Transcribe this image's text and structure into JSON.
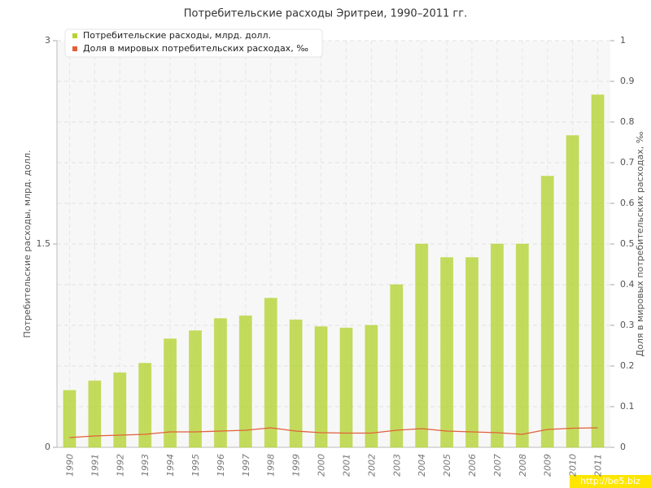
{
  "chart_data": {
    "type": "bar",
    "title": "Потребительские расходы Эритреи, 1990–2011 гг.",
    "y_label": "Потребительские расходы, млрд. долл.",
    "y2_label": "Доля в мировых потребительских расходах, ‰",
    "categories": [
      "1990",
      "1991",
      "1992",
      "1993",
      "1994",
      "1995",
      "1996",
      "1997",
      "1998",
      "1999",
      "2000",
      "2001",
      "2002",
      "2003",
      "2004",
      "2005",
      "2006",
      "2007",
      "2008",
      "2009",
      "2010",
      "2011"
    ],
    "series": [
      {
        "name": "Потребительские расходы, млрд. долл.",
        "type": "bar",
        "color": "#b5d334",
        "axis": "y",
        "values": [
          0.42,
          0.49,
          0.55,
          0.62,
          0.8,
          0.86,
          0.95,
          0.97,
          1.1,
          0.94,
          0.89,
          0.88,
          0.9,
          1.2,
          1.5,
          1.4,
          1.4,
          1.5,
          1.5,
          2.0,
          2.3,
          2.6
        ]
      },
      {
        "name": "Доля в мировых потребительских расходах, ‰",
        "type": "line",
        "color": "#e0603a",
        "axis": "y2",
        "values": [
          0.024,
          0.028,
          0.03,
          0.032,
          0.038,
          0.038,
          0.04,
          0.042,
          0.048,
          0.04,
          0.036,
          0.035,
          0.035,
          0.042,
          0.046,
          0.04,
          0.038,
          0.036,
          0.032,
          0.044,
          0.047,
          0.048
        ]
      }
    ],
    "ylim": [
      0,
      3
    ],
    "yticks": [
      0,
      1.5,
      3
    ],
    "y2lim": [
      0,
      1
    ],
    "y2ticks": [
      0,
      0.1,
      0.2,
      0.3,
      0.4,
      0.5,
      0.6,
      0.7,
      0.8,
      0.9,
      1
    ],
    "grid": true,
    "legend": "top-left"
  },
  "watermark": "http://be5.biz"
}
